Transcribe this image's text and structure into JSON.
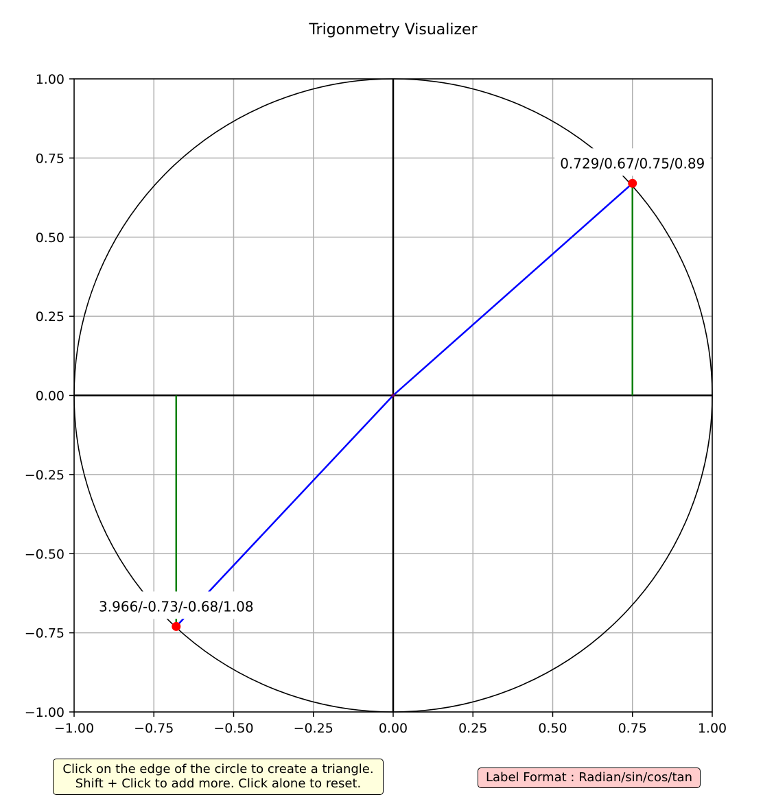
{
  "chart_data": {
    "type": "scatter",
    "title": "Trigonmetry Visualizer",
    "xlabel": "",
    "ylabel": "",
    "xlim": [
      -1.0,
      1.0
    ],
    "ylim": [
      -1.0,
      1.0
    ],
    "grid": true,
    "x_ticks": [
      "−1.00",
      "−0.75",
      "−0.50",
      "−0.25",
      "0.00",
      "0.25",
      "0.50",
      "0.75",
      "1.00"
    ],
    "y_ticks": [
      "−1.00",
      "−0.75",
      "−0.50",
      "−0.25",
      "0.00",
      "0.25",
      "0.50",
      "0.75",
      "1.00"
    ],
    "circle": {
      "center": [
        0,
        0
      ],
      "radius": 1
    },
    "points": [
      {
        "x": 0.75,
        "y": 0.67,
        "label": "0.729/0.67/0.75/0.89"
      },
      {
        "x": -0.68,
        "y": -0.73,
        "label": "3.966/-0.73/-0.68/1.08"
      }
    ],
    "colors": {
      "radius_line": "#0000ff",
      "sin_line": "#008000",
      "point": "#ff0000",
      "circle": "#000000",
      "axes": "#000000",
      "grid": "#b0b0b0"
    }
  },
  "help_text": {
    "line1": "Click on the edge of the circle to create a triangle.",
    "line2": "Shift + Click to add more. Click alone to reset."
  },
  "label_format": "Label Format : Radian/sin/cos/tan",
  "colors": {
    "help_background": "#ffffdd",
    "format_background": "#ffcccc"
  }
}
